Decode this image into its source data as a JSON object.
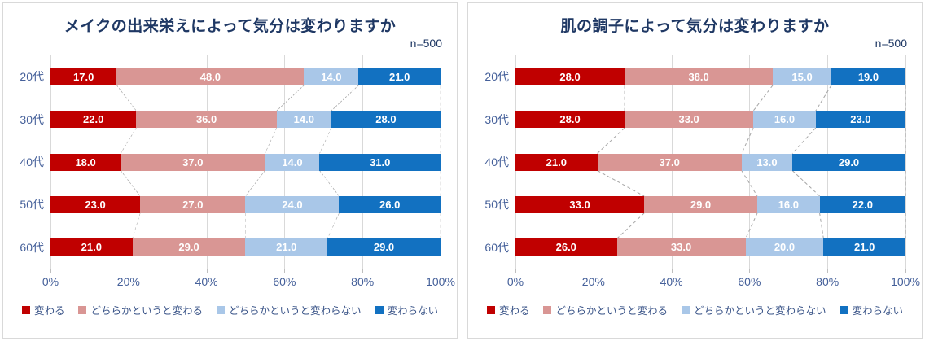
{
  "style": {
    "title_color": "#1F3864",
    "axis_color": "#45609A",
    "legend_color": "#3A5488",
    "grid_color": "#D9D9D9",
    "connector_color": "#A6A6A6",
    "panel_border": "#D9D9D9",
    "value_label_color": "#FFFFFF"
  },
  "chart_data": [
    {
      "type": "bar",
      "orientation": "horizontal",
      "stacked": true,
      "title": "メイクの出来栄えによって気分は変わりますか",
      "sample_label": "n=500",
      "categories": [
        "20代",
        "30代",
        "40代",
        "50代",
        "60代"
      ],
      "series": [
        {
          "name": "変わる",
          "color": "#C00000",
          "values": [
            17.0,
            22.0,
            18.0,
            23.0,
            21.0
          ],
          "value_labels": [
            "17.0",
            "22.0",
            "18.0",
            "23.0",
            "21.0"
          ]
        },
        {
          "name": "どちらかというと変わる",
          "color": "#D99694",
          "values": [
            48.0,
            36.0,
            37.0,
            27.0,
            29.0
          ],
          "value_labels": [
            "48.0",
            "36.0",
            "37.0",
            "27.0",
            "29.0"
          ]
        },
        {
          "name": "どちらかというと変わらない",
          "color": "#A9C7E8",
          "values": [
            14.0,
            14.0,
            14.0,
            24.0,
            21.0
          ],
          "value_labels": [
            "14.0",
            "14.0",
            "14.0",
            "24.0",
            "21.0"
          ]
        },
        {
          "name": "変わらない",
          "color": "#1271C1",
          "values": [
            21.0,
            28.0,
            31.0,
            26.0,
            29.0
          ],
          "value_labels": [
            "21.0",
            "28.0",
            "31.0",
            "26.0",
            "29.0"
          ]
        }
      ],
      "x_ticks": [
        "0%",
        "20%",
        "40%",
        "60%",
        "80%",
        "100%"
      ],
      "xlim": [
        0,
        100
      ],
      "grid": true,
      "legend_position": "bottom"
    },
    {
      "type": "bar",
      "orientation": "horizontal",
      "stacked": true,
      "title": "肌の調子によって気分は変わりますか",
      "sample_label": "n=500",
      "categories": [
        "20代",
        "30代",
        "40代",
        "50代",
        "60代"
      ],
      "series": [
        {
          "name": "変わる",
          "color": "#C00000",
          "values": [
            28.0,
            28.0,
            21.0,
            33.0,
            26.0
          ],
          "value_labels": [
            "28.0",
            "28.0",
            "21.0",
            "33.0",
            "26.0"
          ]
        },
        {
          "name": "どちらかというと変わる",
          "color": "#D99694",
          "values": [
            38.0,
            33.0,
            37.0,
            29.0,
            33.0
          ],
          "value_labels": [
            "38.0",
            "33.0",
            "37.0",
            "29.0",
            "33.0"
          ]
        },
        {
          "name": "どちらかというと変わらない",
          "color": "#A9C7E8",
          "values": [
            15.0,
            16.0,
            13.0,
            16.0,
            20.0
          ],
          "value_labels": [
            "15.0",
            "16.0",
            "13.0",
            "16.0",
            "20.0"
          ]
        },
        {
          "name": "変わらない",
          "color": "#1271C1",
          "values": [
            19.0,
            23.0,
            29.0,
            22.0,
            21.0
          ],
          "value_labels": [
            "19.0",
            "23.0",
            "29.0",
            "22.0",
            "21.0"
          ]
        }
      ],
      "x_ticks": [
        "0%",
        "20%",
        "40%",
        "60%",
        "80%",
        "100%"
      ],
      "xlim": [
        0,
        100
      ],
      "grid": true,
      "legend_position": "bottom"
    }
  ]
}
